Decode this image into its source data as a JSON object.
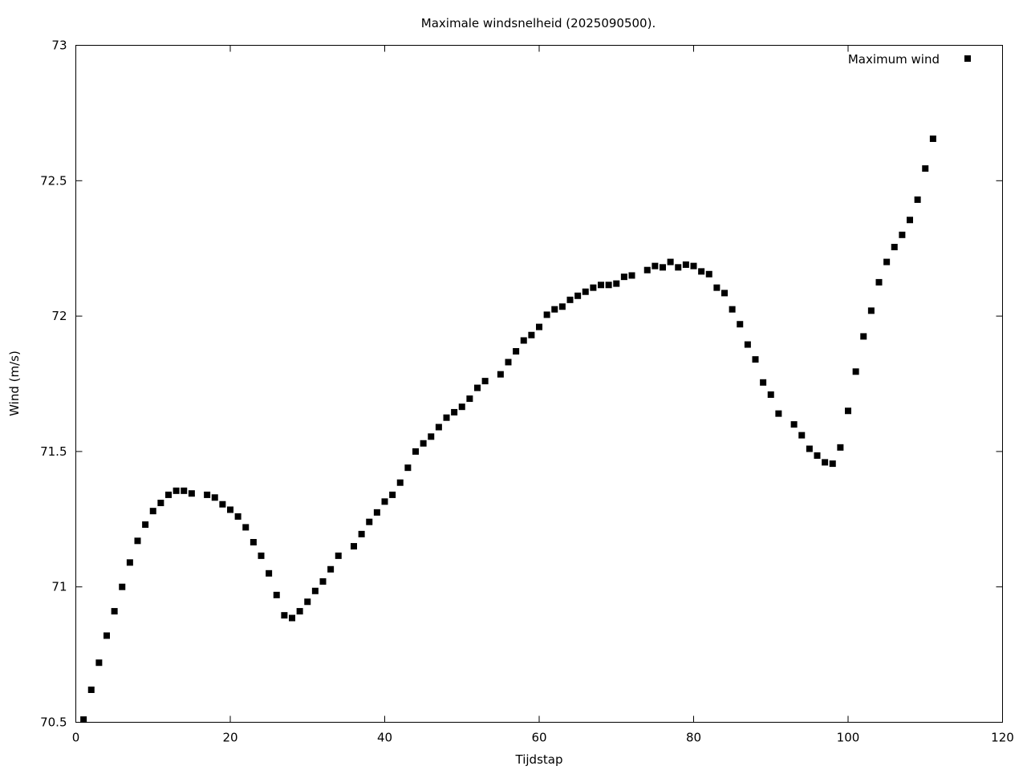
{
  "chart_data": {
    "type": "scatter",
    "title": "Maximale windsnelheid (2025090500).",
    "xlabel": "Tijdstap",
    "ylabel": "Wind (m/s)",
    "xlim": [
      0,
      120
    ],
    "ylim": [
      70.5,
      73
    ],
    "xticks": [
      0,
      20,
      40,
      60,
      80,
      100,
      120
    ],
    "yticks": [
      70.5,
      71,
      71.5,
      72,
      72.5,
      73
    ],
    "ytick_labels": [
      "70.5",
      "71",
      "71.5",
      "72",
      "72.5",
      "73"
    ],
    "xtick_labels": [
      "0",
      "20",
      "40",
      "60",
      "80",
      "100",
      "120"
    ],
    "grid": false,
    "legend_position": "top-right",
    "marker_color": "#000000",
    "series": [
      {
        "name": "Maximum wind",
        "x": [
          1,
          2,
          3,
          4,
          5,
          6,
          7,
          8,
          9,
          10,
          11,
          12,
          13,
          14,
          15,
          17,
          18,
          19,
          20,
          21,
          22,
          23,
          24,
          25,
          26,
          27,
          28,
          29,
          30,
          31,
          32,
          33,
          34,
          36,
          37,
          38,
          39,
          40,
          41,
          42,
          43,
          44,
          45,
          46,
          47,
          48,
          49,
          50,
          51,
          52,
          53,
          55,
          56,
          57,
          58,
          59,
          60,
          61,
          62,
          63,
          64,
          65,
          66,
          67,
          68,
          69,
          70,
          71,
          72,
          74,
          75,
          76,
          77,
          78,
          79,
          80,
          81,
          82,
          83,
          84,
          85,
          86,
          87,
          88,
          89,
          90,
          91,
          93,
          94,
          95,
          96,
          97,
          98,
          99,
          100,
          101,
          102,
          103,
          104,
          105,
          106,
          107,
          108,
          109,
          110,
          111
        ],
        "y": [
          70.51,
          70.62,
          70.72,
          70.82,
          70.91,
          71.0,
          71.09,
          71.17,
          71.23,
          71.28,
          71.31,
          71.34,
          71.355,
          71.355,
          71.345,
          71.34,
          71.33,
          71.305,
          71.285,
          71.26,
          71.22,
          71.165,
          71.115,
          71.05,
          70.97,
          70.895,
          70.885,
          70.91,
          70.945,
          70.985,
          71.02,
          71.065,
          71.115,
          71.15,
          71.195,
          71.24,
          71.275,
          71.315,
          71.34,
          71.385,
          71.44,
          71.5,
          71.53,
          71.555,
          71.59,
          71.625,
          71.645,
          71.665,
          71.695,
          71.735,
          71.76,
          71.785,
          71.83,
          71.87,
          71.91,
          71.93,
          71.96,
          72.005,
          72.025,
          72.035,
          72.06,
          72.075,
          72.09,
          72.105,
          72.115,
          72.115,
          72.12,
          72.145,
          72.15,
          72.17,
          72.185,
          72.18,
          72.2,
          72.18,
          72.19,
          72.185,
          72.165,
          72.155,
          72.105,
          72.085,
          72.025,
          71.97,
          71.895,
          71.84,
          71.755,
          71.71,
          71.64,
          71.6,
          71.56,
          71.51,
          71.485,
          71.46,
          71.455,
          71.515,
          71.65,
          71.795,
          71.925,
          72.02,
          72.125,
          72.2,
          72.255,
          72.3,
          72.355,
          72.43,
          72.545,
          72.655
        ]
      }
    ]
  }
}
